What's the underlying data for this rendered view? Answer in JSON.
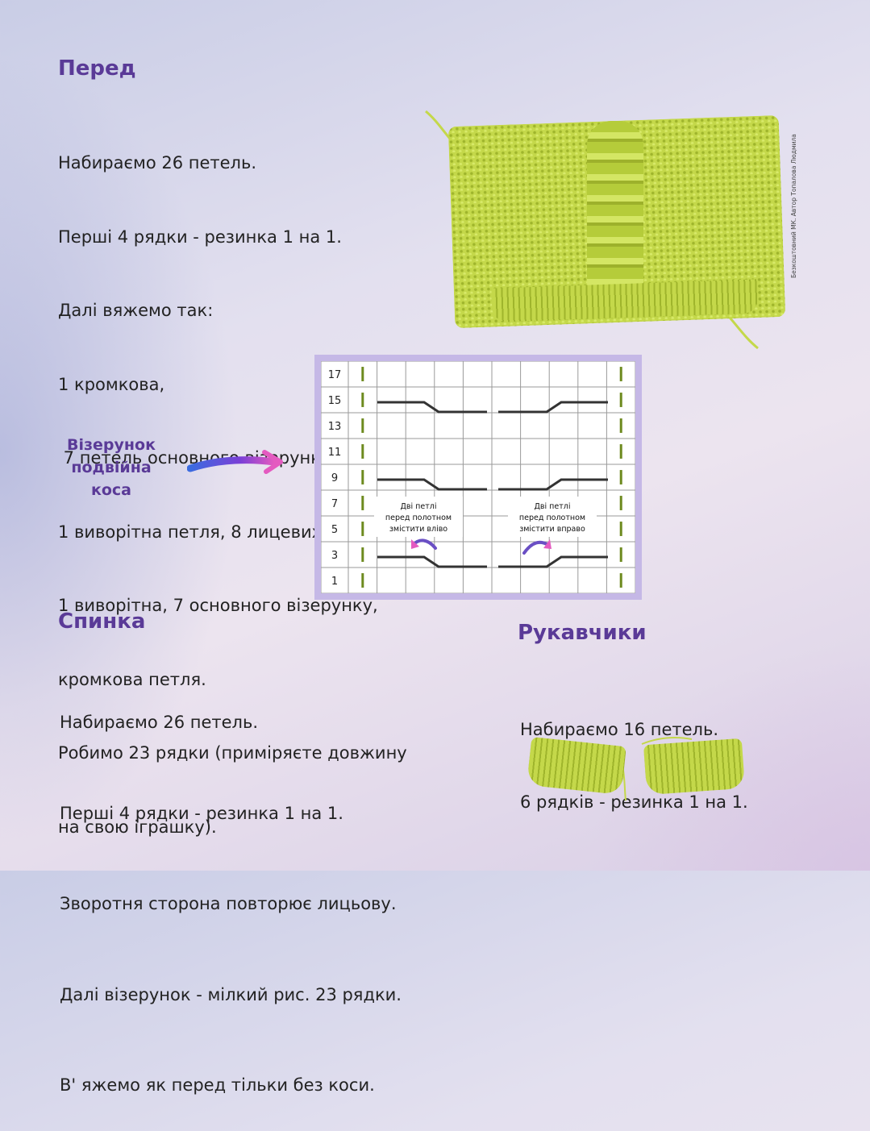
{
  "front": {
    "title": "Перед",
    "lines": [
      "Набираємо 26 петель.",
      "Перші 4 рядки - резинка 1 на 1.",
      "Далі вяжемо так:",
      "1 кромкова,",
      " 7 петель основного візерунку,",
      "1 виворітна петля, 8 лицевих,",
      "1 виворітна, 7 основного візерунку,",
      "кромкова петля.",
      "Робимо 23 рядки (приміряєте довжину",
      "на свою іграшку)."
    ]
  },
  "watermark": "Безкоштовний МК. Автор Топалова Людмила",
  "pattern_label": [
    "Візерунок",
    "подвійна",
    "коса"
  ],
  "chart": {
    "row_numbers": [
      "17",
      "15",
      "13",
      "11",
      "9",
      "7",
      "5",
      "3",
      "1"
    ],
    "note_left": [
      "Дві петлі",
      "перед полотном",
      "змістити вліво"
    ],
    "note_right": [
      "Дві петлі",
      "перед полотном",
      "змістити вправо"
    ],
    "colors": {
      "grid": "#9a9a9a",
      "line": "#333333",
      "stitch": "#6d8a1e",
      "arrow": "#6a4fc4",
      "frame": "#c5b8e6"
    }
  },
  "back": {
    "title": "Спинка",
    "lines": [
      "Набираємо 26 петель.",
      "Перші 4 рядки - резинка 1 на 1.",
      "Зворотня сторона повторює лицьову.",
      "Далі візерунок - мілкий рис. 23 рядки.",
      "В' яжемо як перед тільки без коси."
    ]
  },
  "mittens": {
    "title": "Рукавчики",
    "lines": [
      "Набираємо 16 петель.",
      "6 рядків - резинка 1 на 1."
    ]
  },
  "accent_color": "#5a3a97"
}
